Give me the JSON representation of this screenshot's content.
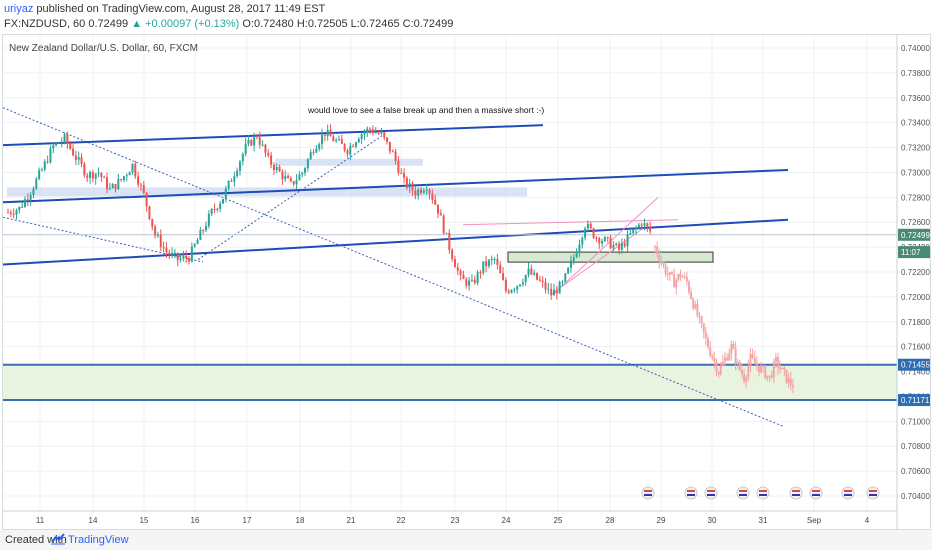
{
  "header": {
    "author": "uriyaz",
    "published_text": "published on TradingView.com, August 28, 2017 11:49 EST",
    "symbol_text": "FX:NZDUSD, 60  0.72499",
    "change_text": "▲ +0.00097 (+0.13%)",
    "ohlc_text": "O:0.72480  H:0.72505  L:0.72465  C:0.72499"
  },
  "footer": {
    "created_with": "Created with",
    "brand": "TradingView"
  },
  "colors": {
    "up_candle": "#26a69a",
    "down_candle": "#ef5350",
    "trend_line": "#1e4bb8",
    "zone_fill": "#e8f3e0",
    "projection": "#f4a6a6",
    "pink_channel": "#f48fc1",
    "price_tag": "#4a8a74"
  },
  "chart_data": {
    "type": "candlestick",
    "title": "New Zealand Dollar/U.S. Dollar, 60, FXCM",
    "annotation": "would love to see a false break up and then a massive short :-)",
    "x_tick_labels": [
      "11",
      "14",
      "15",
      "16",
      "17",
      "18",
      "21",
      "22",
      "23",
      "24",
      "25",
      "28",
      "29",
      "30",
      "31",
      "Sep",
      "4"
    ],
    "y_tick_labels": [
      "0.70400",
      "0.70600",
      "0.70800",
      "0.71000",
      "0.71200",
      "0.71400",
      "0.71600",
      "0.71800",
      "0.72000",
      "0.72200",
      "0.72400",
      "0.72600",
      "0.72800",
      "0.73000",
      "0.73200",
      "0.73400",
      "0.73600",
      "0.73800",
      "0.74000"
    ],
    "ylim": [
      0.703,
      0.741
    ],
    "grid": true,
    "last_price": "0.72499",
    "countdown": "11:07",
    "zone_top_label": "0.71455",
    "zone_bottom_label": "0.71171",
    "close_path": [
      0.7268,
      0.7271,
      0.7285,
      0.7302,
      0.7321,
      0.7327,
      0.7312,
      0.7298,
      0.73,
      0.7286,
      0.7294,
      0.7306,
      0.7282,
      0.725,
      0.7236,
      0.723,
      0.7232,
      0.725,
      0.7268,
      0.728,
      0.73,
      0.732,
      0.733,
      0.731,
      0.73,
      0.729,
      0.73,
      0.732,
      0.7332,
      0.7325,
      0.7318,
      0.733,
      0.7335,
      0.733,
      0.7315,
      0.7292,
      0.7284,
      0.729,
      0.727,
      0.724,
      0.7214,
      0.721,
      0.7225,
      0.723,
      0.7205,
      0.721,
      0.722,
      0.7212,
      0.7202,
      0.721,
      0.7232,
      0.7258,
      0.7248,
      0.7244,
      0.7238,
      0.725,
      0.726,
      0.725
    ],
    "projection_path": [
      0.724,
      0.7228,
      0.7218,
      0.7212,
      0.7218,
      0.7212,
      0.7195,
      0.718,
      0.7165,
      0.7152,
      0.714,
      0.715,
      0.716,
      0.7145,
      0.7135,
      0.715,
      0.7145,
      0.714,
      0.7135,
      0.7148,
      0.714,
      0.7132,
      0.7128
    ]
  }
}
